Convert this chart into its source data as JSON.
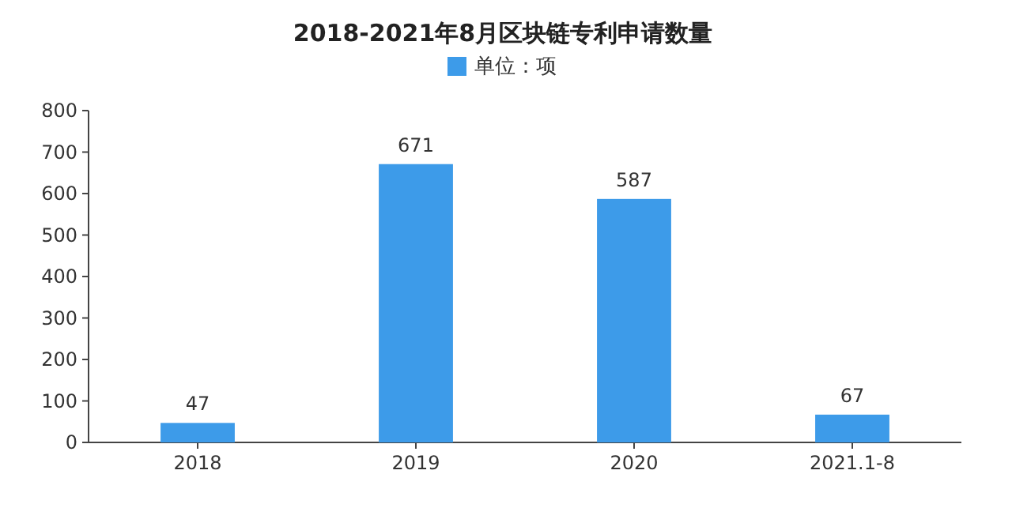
{
  "chart_data": {
    "type": "bar",
    "title": "2018-2021年8月区块链专利申请数量",
    "categories": [
      "2018",
      "2019",
      "2020",
      "2021.1-8"
    ],
    "series": [
      {
        "name": "单位：项",
        "color": "#3d9be9",
        "values": [
          47,
          671,
          587,
          67
        ]
      }
    ],
    "ylim": [
      0,
      800
    ],
    "yticks": [
      0,
      100,
      200,
      300,
      400,
      500,
      600,
      700,
      800
    ],
    "data_labels": true,
    "legend": "top",
    "grid": false
  }
}
